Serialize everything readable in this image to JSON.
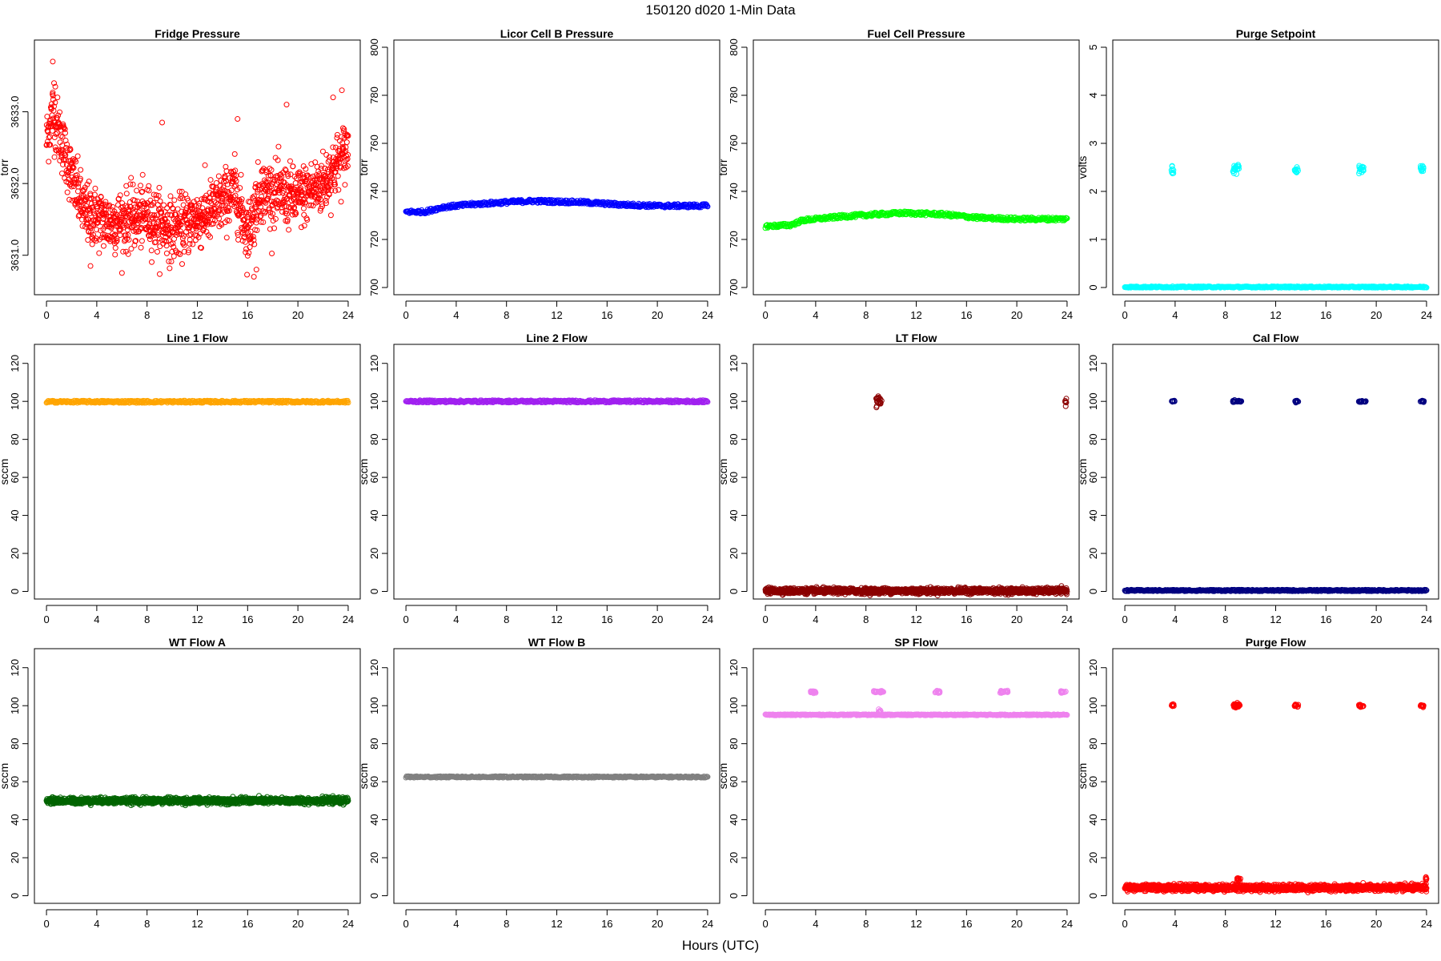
{
  "figure": {
    "title": "150120   d020   1-Min Data",
    "xlabel": "Hours (UTC)"
  },
  "chart_data": [
    {
      "type": "scatter",
      "title": "Fridge Pressure",
      "ylabel": "torr",
      "x_ticks": [
        0,
        4,
        8,
        12,
        16,
        20,
        24
      ],
      "y_ticks": [
        3631.0,
        3632.0,
        3633.0
      ],
      "y_tick_labels": [
        "3631.0",
        "3632.0",
        "3633.0"
      ],
      "xlim": [
        -0.96,
        24.96
      ],
      "ylim": [
        3630.45,
        3634.0
      ],
      "color": "#ff0000",
      "pattern": {
        "kind": "noise",
        "x_start": 0,
        "x_end": 24,
        "n": 1400,
        "anchors": [
          [
            0,
            3632.6
          ],
          [
            0.5,
            3633.0
          ],
          [
            1,
            3632.7
          ],
          [
            2,
            3632.1
          ],
          [
            3,
            3631.6
          ],
          [
            5,
            3631.45
          ],
          [
            8,
            3631.55
          ],
          [
            10,
            3631.35
          ],
          [
            13,
            3631.6
          ],
          [
            15,
            3631.9
          ],
          [
            16,
            3631.3
          ],
          [
            17,
            3631.9
          ],
          [
            20,
            3631.8
          ],
          [
            22,
            3632.0
          ],
          [
            24,
            3632.5
          ]
        ],
        "spread": 0.35
      },
      "points": [
        [
          0.5,
          3633.7
        ],
        [
          0.6,
          3633.4
        ],
        [
          0.7,
          3633.35
        ],
        [
          9.2,
          3632.85
        ],
        [
          15.2,
          3632.9
        ],
        [
          16.5,
          3630.7
        ],
        [
          16.7,
          3630.8
        ],
        [
          19.1,
          3633.1
        ],
        [
          22.8,
          3633.2
        ],
        [
          23.5,
          3633.3
        ],
        [
          3.5,
          3630.85
        ],
        [
          12.1,
          3631.25
        ]
      ]
    },
    {
      "type": "scatter",
      "title": "Licor Cell B Pressure",
      "ylabel": "torr",
      "x_ticks": [
        0,
        4,
        8,
        12,
        16,
        20,
        24
      ],
      "y_ticks": [
        700,
        720,
        740,
        760,
        780,
        800
      ],
      "xlim": [
        -0.96,
        24.96
      ],
      "ylim": [
        697,
        803
      ],
      "color": "#0000ff",
      "pattern": {
        "kind": "line",
        "x_start": 0,
        "x_end": 24,
        "anchors": [
          [
            0,
            731.5
          ],
          [
            1.5,
            731.5
          ],
          [
            3,
            733.5
          ],
          [
            5,
            734.5
          ],
          [
            8,
            735.5
          ],
          [
            10,
            736
          ],
          [
            14,
            735.5
          ],
          [
            17,
            734.5
          ],
          [
            20,
            734
          ],
          [
            24,
            734
          ]
        ],
        "thickness": 1.5
      }
    },
    {
      "type": "scatter",
      "title": "Fuel Cell Pressure",
      "ylabel": "torr",
      "x_ticks": [
        0,
        4,
        8,
        12,
        16,
        20,
        24
      ],
      "y_ticks": [
        700,
        720,
        740,
        760,
        780,
        800
      ],
      "xlim": [
        -0.96,
        24.96
      ],
      "ylim": [
        697,
        803
      ],
      "color": "#00ff00",
      "pattern": {
        "kind": "line",
        "x_start": 0,
        "x_end": 24,
        "anchors": [
          [
            0,
            725.5
          ],
          [
            2,
            726
          ],
          [
            3,
            728
          ],
          [
            6,
            729.5
          ],
          [
            9,
            730.5
          ],
          [
            11,
            731
          ],
          [
            14,
            730.5
          ],
          [
            17,
            729
          ],
          [
            20,
            728.5
          ],
          [
            24,
            728.5
          ]
        ],
        "thickness": 1.5
      }
    },
    {
      "type": "scatter",
      "title": "Purge Setpoint",
      "ylabel": "volts",
      "x_ticks": [
        0,
        4,
        8,
        12,
        16,
        20,
        24
      ],
      "y_ticks": [
        0,
        1,
        2,
        3,
        4,
        5
      ],
      "xlim": [
        -0.96,
        24.96
      ],
      "ylim": [
        -0.15,
        5.15
      ],
      "color": "#00ffff",
      "pattern": {
        "kind": "line",
        "x_start": 0,
        "x_end": 24,
        "anchors": [
          [
            0,
            0.01
          ],
          [
            24,
            0.01
          ]
        ],
        "thickness": 0.03
      },
      "clusters": [
        {
          "x_start": 3.7,
          "x_end": 3.9,
          "y": 2.46,
          "spread": 0.04
        },
        {
          "x_start": 8.6,
          "x_end": 9.1,
          "y": 2.47,
          "spread": 0.05
        },
        {
          "x_start": 13.5,
          "x_end": 13.8,
          "y": 2.44,
          "spread": 0.03
        },
        {
          "x_start": 18.6,
          "x_end": 19.0,
          "y": 2.48,
          "spread": 0.05
        },
        {
          "x_start": 23.5,
          "x_end": 23.8,
          "y": 2.47,
          "spread": 0.04
        }
      ]
    },
    {
      "type": "scatter",
      "title": "Line 1 Flow",
      "ylabel": "sccm",
      "x_ticks": [
        0,
        4,
        8,
        12,
        16,
        20,
        24
      ],
      "y_ticks": [
        0,
        20,
        40,
        60,
        80,
        100,
        120
      ],
      "xlim": [
        -0.96,
        24.96
      ],
      "ylim": [
        -4,
        130
      ],
      "color": "#ffa500",
      "pattern": {
        "kind": "line",
        "x_start": 0,
        "x_end": 24,
        "anchors": [
          [
            0,
            99.8
          ],
          [
            24,
            99.8
          ]
        ],
        "thickness": 1.2
      }
    },
    {
      "type": "scatter",
      "title": "Line 2 Flow",
      "ylabel": "sccm",
      "x_ticks": [
        0,
        4,
        8,
        12,
        16,
        20,
        24
      ],
      "y_ticks": [
        0,
        20,
        40,
        60,
        80,
        100,
        120
      ],
      "xlim": [
        -0.96,
        24.96
      ],
      "ylim": [
        -4,
        130
      ],
      "color": "#a020f0",
      "pattern": {
        "kind": "line",
        "x_start": 0,
        "x_end": 24,
        "anchors": [
          [
            0,
            100
          ],
          [
            24,
            100
          ]
        ],
        "thickness": 1.2
      }
    },
    {
      "type": "scatter",
      "title": "LT Flow",
      "ylabel": "sccm",
      "x_ticks": [
        0,
        4,
        8,
        12,
        16,
        20,
        24
      ],
      "y_ticks": [
        0,
        20,
        40,
        60,
        80,
        100,
        120
      ],
      "xlim": [
        -0.96,
        24.96
      ],
      "ylim": [
        -4,
        130
      ],
      "color": "#8b0000",
      "pattern": {
        "kind": "noise",
        "x_start": 0,
        "x_end": 24,
        "n": 1500,
        "anchors": [
          [
            0,
            0.3
          ],
          [
            24,
            0.3
          ]
        ],
        "spread": 1.2
      },
      "clusters": [
        {
          "x_start": 8.8,
          "x_end": 9.3,
          "y": 100,
          "spread": 1.5
        },
        {
          "x_start": 23.8,
          "x_end": 23.95,
          "y": 99.5,
          "spread": 1.5
        }
      ]
    },
    {
      "type": "scatter",
      "title": "Cal Flow",
      "ylabel": "sccm",
      "x_ticks": [
        0,
        4,
        8,
        12,
        16,
        20,
        24
      ],
      "y_ticks": [
        0,
        20,
        40,
        60,
        80,
        100,
        120
      ],
      "xlim": [
        -0.96,
        24.96
      ],
      "ylim": [
        -4,
        130
      ],
      "color": "#000080",
      "pattern": {
        "kind": "line",
        "x_start": 0,
        "x_end": 24,
        "anchors": [
          [
            0,
            0.5
          ],
          [
            24,
            0.5
          ]
        ],
        "thickness": 0.8
      },
      "clusters": [
        {
          "x_start": 3.7,
          "x_end": 4.0,
          "y": 100,
          "spread": 0.2
        },
        {
          "x_start": 8.6,
          "x_end": 9.3,
          "y": 100,
          "spread": 0.2
        },
        {
          "x_start": 13.5,
          "x_end": 13.8,
          "y": 100,
          "spread": 0.2
        },
        {
          "x_start": 18.6,
          "x_end": 19.2,
          "y": 100,
          "spread": 0.2
        },
        {
          "x_start": 23.5,
          "x_end": 23.8,
          "y": 100,
          "spread": 0.2
        }
      ]
    },
    {
      "type": "scatter",
      "title": "WT Flow A",
      "ylabel": "sccm",
      "x_ticks": [
        0,
        4,
        8,
        12,
        16,
        20,
        24
      ],
      "y_ticks": [
        0,
        20,
        40,
        60,
        80,
        100,
        120
      ],
      "xlim": [
        -0.96,
        24.96
      ],
      "ylim": [
        -4,
        130
      ],
      "color": "#006400",
      "pattern": {
        "kind": "noise",
        "x_start": 0,
        "x_end": 24,
        "n": 1500,
        "anchors": [
          [
            0,
            50
          ],
          [
            24,
            50
          ]
        ],
        "spread": 1.3
      }
    },
    {
      "type": "scatter",
      "title": "WT Flow B",
      "ylabel": "sccm",
      "x_ticks": [
        0,
        4,
        8,
        12,
        16,
        20,
        24
      ],
      "y_ticks": [
        0,
        20,
        40,
        60,
        80,
        100,
        120
      ],
      "xlim": [
        -0.96,
        24.96
      ],
      "ylim": [
        -4,
        130
      ],
      "color": "#808080",
      "pattern": {
        "kind": "line",
        "x_start": 0,
        "x_end": 24,
        "anchors": [
          [
            0,
            62.5
          ],
          [
            24,
            62.5
          ]
        ],
        "thickness": 0.8
      }
    },
    {
      "type": "scatter",
      "title": "SP Flow",
      "ylabel": "sccm",
      "x_ticks": [
        0,
        4,
        8,
        12,
        16,
        20,
        24
      ],
      "y_ticks": [
        0,
        20,
        40,
        60,
        80,
        100,
        120
      ],
      "xlim": [
        -0.96,
        24.96
      ],
      "ylim": [
        -4,
        130
      ],
      "color": "#ee82ee",
      "pattern": {
        "kind": "line",
        "x_start": 0,
        "x_end": 24,
        "anchors": [
          [
            0,
            95.2
          ],
          [
            24,
            95.2
          ]
        ],
        "thickness": 0.6
      },
      "clusters": [
        {
          "x_start": 3.6,
          "x_end": 4.0,
          "y": 107.3,
          "spread": 0.3
        },
        {
          "x_start": 8.6,
          "x_end": 9.4,
          "y": 107.3,
          "spread": 0.3
        },
        {
          "x_start": 13.5,
          "x_end": 13.9,
          "y": 107.3,
          "spread": 0.3
        },
        {
          "x_start": 18.6,
          "x_end": 19.3,
          "y": 107.3,
          "spread": 0.3
        },
        {
          "x_start": 23.5,
          "x_end": 23.9,
          "y": 107.3,
          "spread": 0.3
        },
        {
          "x_start": 9.0,
          "x_end": 9.2,
          "y": 97,
          "spread": 0.5
        }
      ]
    },
    {
      "type": "scatter",
      "title": "Purge Flow",
      "ylabel": "sccm",
      "x_ticks": [
        0,
        4,
        8,
        12,
        16,
        20,
        24
      ],
      "y_ticks": [
        0,
        20,
        40,
        60,
        80,
        100,
        120
      ],
      "xlim": [
        -0.96,
        24.96
      ],
      "ylim": [
        -4,
        130
      ],
      "color": "#ff0000",
      "pattern": {
        "kind": "noise",
        "x_start": 0,
        "x_end": 24,
        "n": 1500,
        "anchors": [
          [
            0,
            4.2
          ],
          [
            24,
            4.2
          ]
        ],
        "spread": 1.4
      },
      "clusters": [
        {
          "x_start": 3.7,
          "x_end": 3.9,
          "y": 100,
          "spread": 0.5
        },
        {
          "x_start": 8.6,
          "x_end": 9.2,
          "y": 100,
          "spread": 0.5
        },
        {
          "x_start": 13.5,
          "x_end": 13.8,
          "y": 100,
          "spread": 0.5
        },
        {
          "x_start": 18.6,
          "x_end": 19.0,
          "y": 100,
          "spread": 0.5
        },
        {
          "x_start": 23.5,
          "x_end": 23.8,
          "y": 100,
          "spread": 0.5
        },
        {
          "x_start": 8.9,
          "x_end": 9.2,
          "y": 8,
          "spread": 1.2
        },
        {
          "x_start": 23.9,
          "x_end": 24.0,
          "y": 8,
          "spread": 1.0
        }
      ]
    }
  ]
}
